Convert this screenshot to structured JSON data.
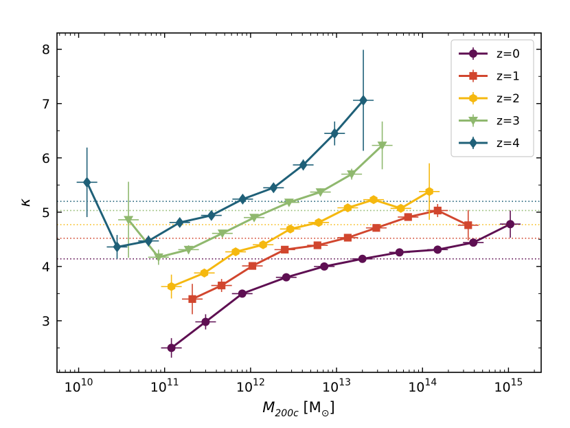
{
  "chart_data": {
    "type": "line",
    "title": "",
    "xlabel": "M_200c [M_⊙]",
    "xlabel_main": "M",
    "xlabel_sub": "200c",
    "xlabel_unit": " [M",
    "xlabel_unit_sub": "⊙",
    "xlabel_close": "]",
    "ylabel": "κ",
    "xscale": "log",
    "xlim": [
      5600000000.0,
      2400000000000000.0
    ],
    "ylim": [
      2.05,
      8.3
    ],
    "yticks": [
      3,
      4,
      5,
      6,
      7,
      8
    ],
    "ytick_labels": [
      "3",
      "4",
      "5",
      "6",
      "7",
      "8"
    ],
    "xticks": [
      {
        "base": "10",
        "exp": "10",
        "value": 10000000000.0
      },
      {
        "base": "10",
        "exp": "11",
        "value": 100000000000.0
      },
      {
        "base": "10",
        "exp": "12",
        "value": 1000000000000.0
      },
      {
        "base": "10",
        "exp": "13",
        "value": 10000000000000.0
      },
      {
        "base": "10",
        "exp": "14",
        "value": 100000000000000.0
      },
      {
        "base": "10",
        "exp": "15",
        "value": 1000000000000000.0
      }
    ],
    "legend_position": "top-right",
    "series": [
      {
        "name": "z=0",
        "color": "#5e0f52",
        "marker": "circle",
        "reference_line": 4.14,
        "points": [
          {
            "x": 120000000000.0,
            "y": 2.5,
            "yerr": 0.18
          },
          {
            "x": 300000000000.0,
            "y": 2.98,
            "yerr": 0.14
          },
          {
            "x": 800000000000.0,
            "y": 3.5,
            "yerr": 0.06
          },
          {
            "x": 2600000000000.0,
            "y": 3.8,
            "yerr": 0.04
          },
          {
            "x": 7200000000000.0,
            "y": 4.0,
            "yerr": 0.03
          },
          {
            "x": 20000000000000.0,
            "y": 4.14,
            "yerr": 0.03
          },
          {
            "x": 54000000000000.0,
            "y": 4.26,
            "yerr": 0.03
          },
          {
            "x": 150000000000000.0,
            "y": 4.31,
            "yerr": 0.03
          },
          {
            "x": 390000000000000.0,
            "y": 4.44,
            "yerr": 0.04
          },
          {
            "x": 1050000000000000.0,
            "y": 4.78,
            "yerr": 0.25
          }
        ]
      },
      {
        "name": "z=1",
        "color": "#d1462e",
        "marker": "square",
        "reference_line": 4.52,
        "points": [
          {
            "x": 210000000000.0,
            "y": 3.4,
            "yerr": 0.28
          },
          {
            "x": 460000000000.0,
            "y": 3.65,
            "yerr": 0.12
          },
          {
            "x": 1050000000000.0,
            "y": 4.01,
            "yerr": 0.06
          },
          {
            "x": 2500000000000.0,
            "y": 4.31,
            "yerr": 0.05
          },
          {
            "x": 6000000000000.0,
            "y": 4.39,
            "yerr": 0.04
          },
          {
            "x": 13500000000000.0,
            "y": 4.53,
            "yerr": 0.04
          },
          {
            "x": 29000000000000.0,
            "y": 4.71,
            "yerr": 0.05
          },
          {
            "x": 68000000000000.0,
            "y": 4.91,
            "yerr": 0.06
          },
          {
            "x": 150000000000000.0,
            "y": 5.03,
            "yerr": 0.12
          },
          {
            "x": 340000000000000.0,
            "y": 4.76,
            "yerr": 0.28
          }
        ]
      },
      {
        "name": "z=2",
        "color": "#f5b80f",
        "marker": "hexagon",
        "reference_line": 4.77,
        "points": [
          {
            "x": 120000000000.0,
            "y": 3.63,
            "yerr": 0.22
          },
          {
            "x": 290000000000.0,
            "y": 3.88,
            "yerr": 0.08
          },
          {
            "x": 670000000000.0,
            "y": 4.27,
            "yerr": 0.06
          },
          {
            "x": 1400000000000.0,
            "y": 4.4,
            "yerr": 0.05
          },
          {
            "x": 2900000000000.0,
            "y": 4.69,
            "yerr": 0.05
          },
          {
            "x": 6200000000000.0,
            "y": 4.81,
            "yerr": 0.05
          },
          {
            "x": 13500000000000.0,
            "y": 5.08,
            "yerr": 0.05
          },
          {
            "x": 27000000000000.0,
            "y": 5.23,
            "yerr": 0.06
          },
          {
            "x": 56000000000000.0,
            "y": 5.07,
            "yerr": 0.08
          },
          {
            "x": 120000000000000.0,
            "y": 5.38,
            "yerr": 0.52
          }
        ]
      },
      {
        "name": "z=3",
        "color": "#8fb86e",
        "marker": "triangle-down",
        "reference_line": 5.03,
        "points": [
          {
            "x": 38000000000.0,
            "y": 4.86,
            "yerr": 0.7
          },
          {
            "x": 85000000000.0,
            "y": 4.17,
            "yerr": 0.14
          },
          {
            "x": 190000000000.0,
            "y": 4.31,
            "yerr": 0.08
          },
          {
            "x": 470000000000.0,
            "y": 4.61,
            "yerr": 0.06
          },
          {
            "x": 1100000000000.0,
            "y": 4.9,
            "yerr": 0.06
          },
          {
            "x": 2800000000000.0,
            "y": 5.18,
            "yerr": 0.05
          },
          {
            "x": 6500000000000.0,
            "y": 5.37,
            "yerr": 0.07
          },
          {
            "x": 15000000000000.0,
            "y": 5.7,
            "yerr": 0.1
          },
          {
            "x": 34000000000000.0,
            "y": 6.23,
            "yerr": 0.44
          }
        ]
      },
      {
        "name": "z=4",
        "color": "#1f6078",
        "marker": "diamond",
        "reference_line": 5.2,
        "points": [
          {
            "x": 12500000000.0,
            "y": 5.55,
            "yerr": 0.64
          },
          {
            "x": 28000000000.0,
            "y": 4.36,
            "yerr": 0.22
          },
          {
            "x": 65000000000.0,
            "y": 4.47,
            "yerr": 0.1
          },
          {
            "x": 150000000000.0,
            "y": 4.81,
            "yerr": 0.07
          },
          {
            "x": 350000000000.0,
            "y": 4.94,
            "yerr": 0.07
          },
          {
            "x": 810000000000.0,
            "y": 5.24,
            "yerr": 0.07
          },
          {
            "x": 1850000000000.0,
            "y": 5.45,
            "yerr": 0.09
          },
          {
            "x": 4100000000000.0,
            "y": 5.87,
            "yerr": 0.1
          },
          {
            "x": 9500000000000.0,
            "y": 6.45,
            "yerr": 0.22
          },
          {
            "x": 20500000000000.0,
            "y": 7.06,
            "yerr": 0.93
          }
        ]
      }
    ]
  }
}
